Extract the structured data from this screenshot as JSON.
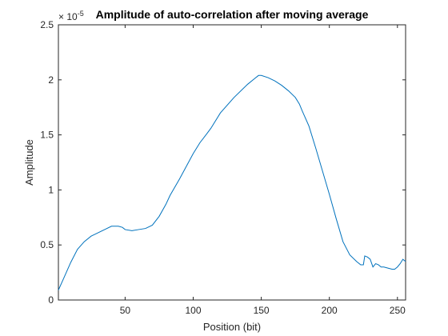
{
  "chart_data": {
    "type": "line",
    "title": "Amplitude of auto-correlation after moving average",
    "xlabel": "Position (bit)",
    "ylabel": "Amplitude",
    "y_exponent_base": "× 10",
    "y_exponent_power": "-5",
    "xlim": [
      1,
      256
    ],
    "ylim": [
      0,
      2.5
    ],
    "x_ticks": [
      50,
      100,
      150,
      200,
      250
    ],
    "x_tick_labels": [
      "50",
      "100",
      "150",
      "200",
      "250"
    ],
    "y_ticks": [
      0,
      0.5,
      1,
      1.5,
      2,
      2.5
    ],
    "y_tick_labels": [
      "0",
      "0.5",
      "1",
      "1.5",
      "2",
      "2.5"
    ],
    "grid": false,
    "line_color": "#0072bd",
    "series": [
      {
        "x": [
          1,
          5,
          10,
          15,
          20,
          25,
          30,
          35,
          40,
          45,
          48,
          50,
          55,
          60,
          65,
          70,
          75,
          80,
          83,
          90,
          100,
          105,
          110,
          113,
          120,
          130,
          140,
          145,
          148,
          150,
          155,
          160,
          165,
          170,
          175,
          178,
          180,
          185,
          190,
          195,
          200,
          205,
          210,
          215,
          220,
          223,
          225,
          226,
          228,
          230,
          232,
          234,
          236,
          238,
          240,
          243,
          246,
          248,
          250,
          252,
          254,
          256
        ],
        "y": [
          0.09,
          0.2,
          0.34,
          0.46,
          0.53,
          0.58,
          0.61,
          0.64,
          0.67,
          0.67,
          0.66,
          0.64,
          0.63,
          0.64,
          0.65,
          0.68,
          0.76,
          0.87,
          0.95,
          1.1,
          1.33,
          1.43,
          1.51,
          1.56,
          1.7,
          1.84,
          1.96,
          2.01,
          2.04,
          2.04,
          2.02,
          1.99,
          1.95,
          1.9,
          1.84,
          1.78,
          1.72,
          1.58,
          1.38,
          1.17,
          0.96,
          0.74,
          0.53,
          0.41,
          0.35,
          0.32,
          0.32,
          0.4,
          0.39,
          0.37,
          0.3,
          0.33,
          0.32,
          0.3,
          0.3,
          0.29,
          0.28,
          0.28,
          0.3,
          0.33,
          0.37,
          0.35
        ]
      }
    ]
  }
}
